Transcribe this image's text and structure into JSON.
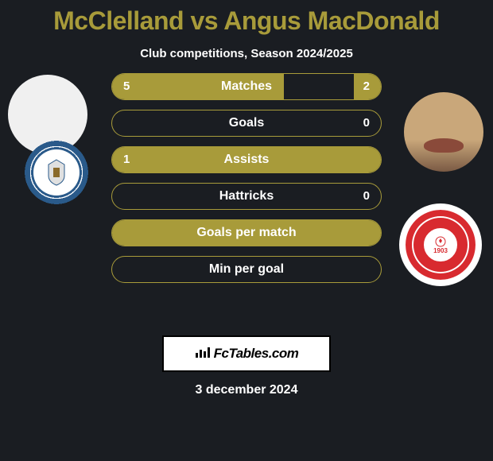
{
  "title": "McClelland vs Angus MacDonald",
  "subtitle": "Club competitions, Season 2024/2025",
  "accent_color": "#a89b3a",
  "background_color": "#1a1d22",
  "text_color": "#ffffff",
  "player_left": {
    "name": "McClelland",
    "club_badge_primary": "#2a5a8a",
    "club_badge_secondary": "#ffffff"
  },
  "player_right": {
    "name": "Angus MacDonald",
    "club_badge_primary": "#d82a2f",
    "club_badge_secondary": "#ffffff",
    "club_year": "1903"
  },
  "stats": [
    {
      "label": "Matches",
      "left_val": "5",
      "right_val": "2",
      "left_fill_pct": 64,
      "right_fill_pct": 10,
      "show_left": true,
      "show_right": true
    },
    {
      "label": "Goals",
      "left_val": "",
      "right_val": "0",
      "left_fill_pct": 0,
      "right_fill_pct": 0,
      "show_left": false,
      "show_right": true
    },
    {
      "label": "Assists",
      "left_val": "1",
      "right_val": "",
      "left_fill_pct": 100,
      "right_fill_pct": 0,
      "show_left": true,
      "show_right": false
    },
    {
      "label": "Hattricks",
      "left_val": "",
      "right_val": "0",
      "left_fill_pct": 0,
      "right_fill_pct": 0,
      "show_left": false,
      "show_right": true
    },
    {
      "label": "Goals per match",
      "left_val": "",
      "right_val": "",
      "left_fill_pct": 100,
      "right_fill_pct": 0,
      "show_left": false,
      "show_right": false
    },
    {
      "label": "Min per goal",
      "left_val": "",
      "right_val": "",
      "left_fill_pct": 0,
      "right_fill_pct": 0,
      "show_left": false,
      "show_right": false
    }
  ],
  "footer": {
    "site_label": "FcTables.com",
    "date": "3 december 2024"
  }
}
